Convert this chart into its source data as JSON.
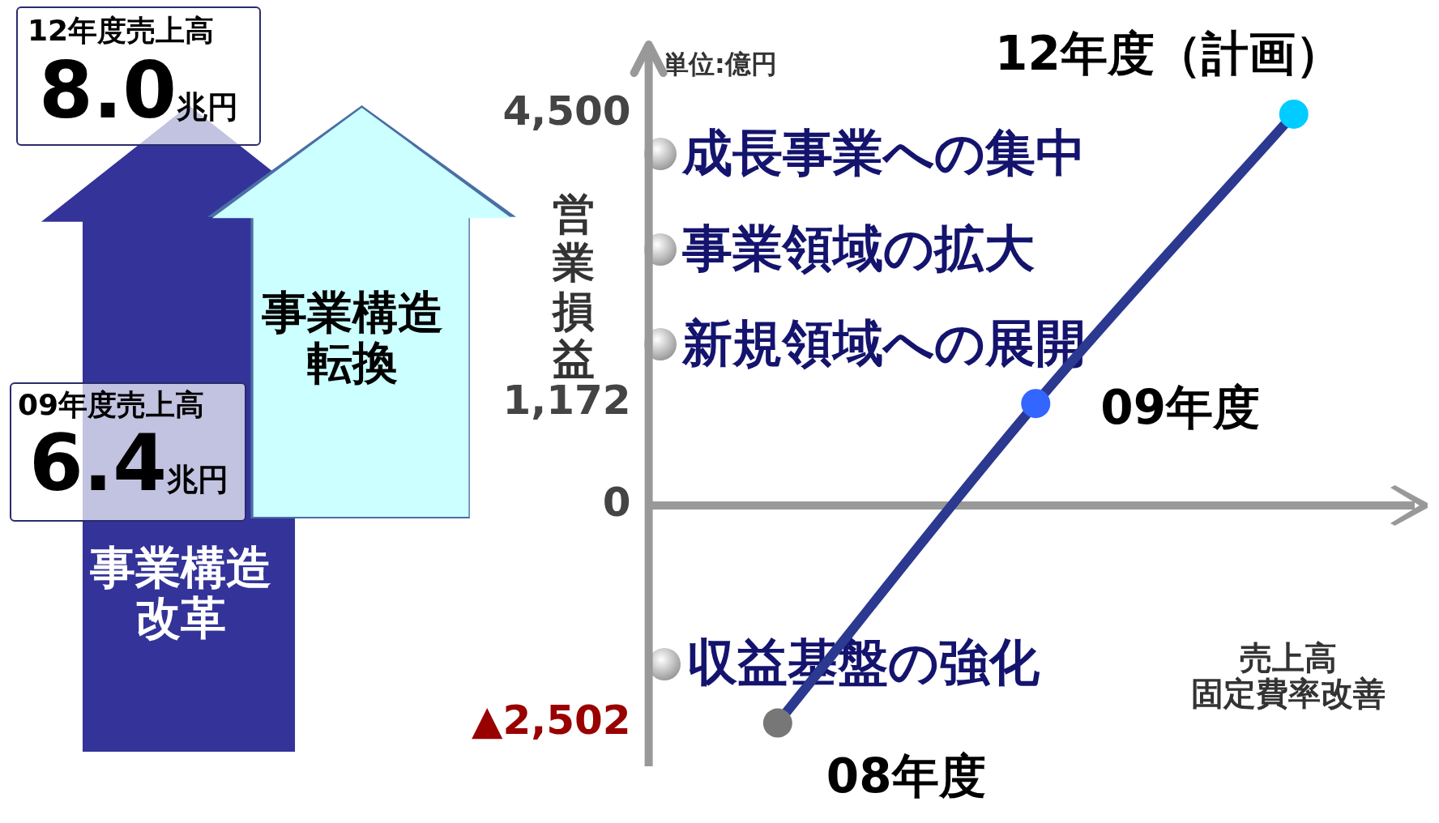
{
  "chart_data": {
    "type": "line",
    "ylabel": "営業損益",
    "xlabel": "売上高固定費率改善",
    "categories": [
      null,
      null,
      null
    ],
    "series": [
      {
        "color": "#2b3990",
        "colors": [
          "#777777",
          "#3366ff",
          "#00ccff"
        ],
        "values": [
          -2502,
          1172,
          4500
        ]
      }
    ],
    "ylim": [
      -3000,
      5300
    ],
    "yticks": [
      {
        "value": -2502,
        "label": "▲2,502"
      },
      0,
      {
        "value": 1172,
        "label": "1,172"
      },
      {
        "value": 4500,
        "label": "4,500"
      }
    ],
    "ref_lines": [
      {
        "axis": "y",
        "value": 0,
        "color": "#999999"
      }
    ],
    "grid": false,
    "legend": false,
    "marker": "circle",
    "line_style": "solid",
    "tick_labels": "y",
    "annotations": [
      "単位:億円",
      "成長事業への集中",
      "事業領域の拡大",
      "新規領域への展開",
      "収益基盤の強化",
      "12年度売上高",
      "8.0兆円",
      "09年度売上高",
      "6.4兆円",
      "事業構造改革",
      "事業構造転換",
      "08年度",
      "09年度",
      "12年度（計画）"
    ]
  }
}
